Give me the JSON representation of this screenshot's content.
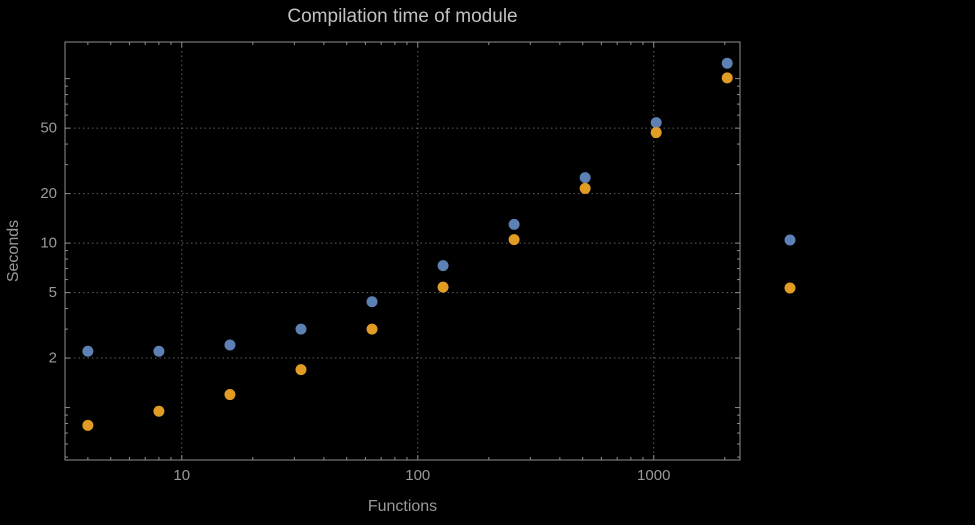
{
  "chart_data": {
    "type": "scatter",
    "title": "Compilation time of module",
    "xlabel": "Functions",
    "ylabel": "Seconds",
    "x_scale": "log",
    "y_scale": "log",
    "xlim": [
      3.2,
      2320
    ],
    "ylim": [
      0.48,
      167
    ],
    "grid": true,
    "x": [
      4,
      8,
      16,
      32,
      64,
      128,
      256,
      512,
      1024,
      2048
    ],
    "series": [
      {
        "name": "series-1-blue",
        "color": "#5E81B5",
        "values": [
          2.2,
          2.2,
          2.4,
          3.0,
          4.4,
          7.3,
          13,
          25,
          54,
          124
        ]
      },
      {
        "name": "series-2-orange",
        "color": "#E19C24",
        "values": [
          0.78,
          0.95,
          1.2,
          1.7,
          3.0,
          5.4,
          10.5,
          21.5,
          47,
          101
        ]
      }
    ],
    "x_ticks": [
      {
        "v": 10,
        "label": "10"
      },
      {
        "v": 100,
        "label": "100"
      },
      {
        "v": 1000,
        "label": "1000"
      }
    ],
    "y_ticks": [
      {
        "v": 2,
        "label": "2"
      },
      {
        "v": 5,
        "label": "5"
      },
      {
        "v": 10,
        "label": "10"
      },
      {
        "v": 20,
        "label": "20"
      },
      {
        "v": 50,
        "label": "50"
      }
    ],
    "y_ticks_unlabeled": [
      1,
      100
    ],
    "legend": {
      "position": "right",
      "labels_visible": false,
      "marker_colors": [
        "#5E81B5",
        "#E19C24"
      ]
    }
  },
  "colors": {
    "background": "#000000",
    "frame": "#8f8f8f",
    "grid": "#5f5f5f",
    "tick_labels": "#9a9a9a",
    "title": "#c2c2c2",
    "axis_labels": "#9a9a9a"
  }
}
